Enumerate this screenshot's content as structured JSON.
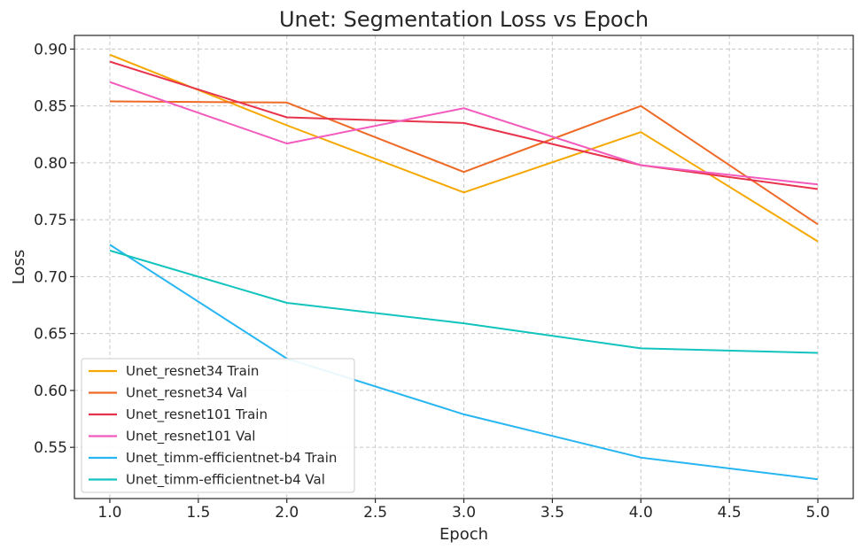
{
  "chart_data": {
    "type": "line",
    "title": "Unet: Segmentation Loss vs Epoch",
    "xlabel": "Epoch",
    "ylabel": "Loss",
    "xlim": [
      0.8,
      5.2
    ],
    "ylim": [
      0.505,
      0.912
    ],
    "xticks": [
      1.0,
      1.5,
      2.0,
      2.5,
      3.0,
      3.5,
      4.0,
      4.5,
      5.0
    ],
    "yticks": [
      0.55,
      0.6,
      0.65,
      0.7,
      0.75,
      0.8,
      0.85,
      0.9
    ],
    "grid": true,
    "legend_position": "lower-left",
    "x": [
      1,
      2,
      3,
      4,
      5
    ],
    "series": [
      {
        "name": "Unet_resnet34 Train",
        "color": "#f5a800",
        "values": [
          0.895,
          0.833,
          0.774,
          0.827,
          0.731
        ]
      },
      {
        "name": "Unet_resnet34 Val",
        "color": "#ee6a26",
        "values": [
          0.854,
          0.853,
          0.792,
          0.85,
          0.746
        ]
      },
      {
        "name": "Unet_resnet101 Train",
        "color": "#e8334c",
        "values": [
          0.889,
          0.84,
          0.835,
          0.798,
          0.777
        ]
      },
      {
        "name": "Unet_resnet101 Val",
        "color": "#f25bbd",
        "values": [
          0.871,
          0.817,
          0.848,
          0.798,
          0.781
        ]
      },
      {
        "name": "Unet_timm-efficientnet-b4 Train",
        "color": "#27b6f2",
        "values": [
          0.728,
          0.628,
          0.579,
          0.541,
          0.522
        ]
      },
      {
        "name": "Unet_timm-efficientnet-b4 Val",
        "color": "#12c4bd",
        "values": [
          0.723,
          0.677,
          0.659,
          0.637,
          0.633
        ]
      }
    ]
  }
}
